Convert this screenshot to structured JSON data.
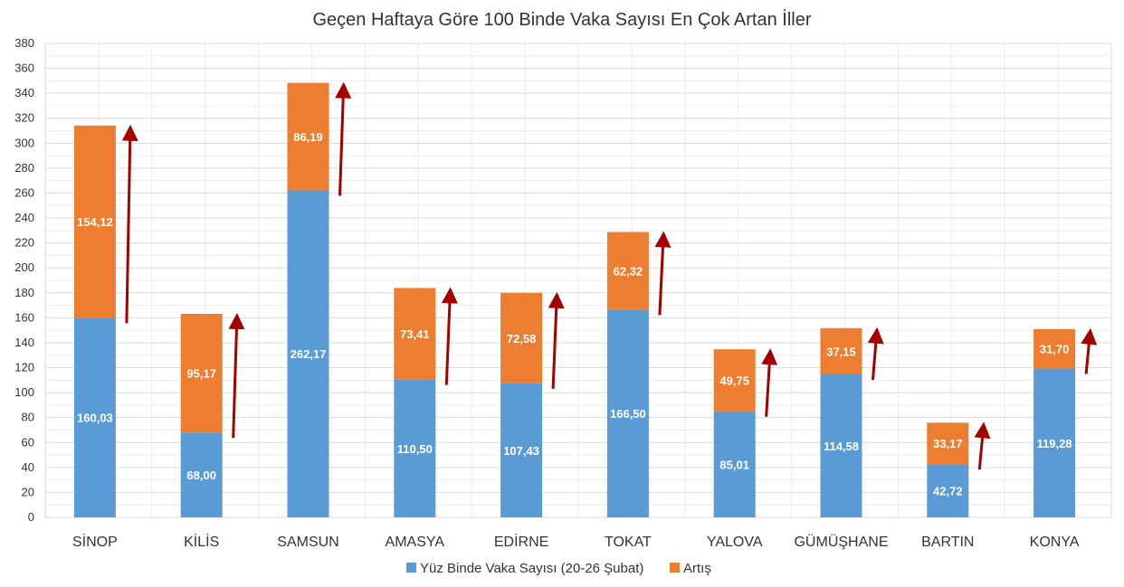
{
  "chart_data": {
    "type": "bar",
    "stacked": true,
    "title": "Geçen Haftaya Göre 100 Binde Vaka Sayısı En Çok Artan İller",
    "categories": [
      "SİNOP",
      "KİLİS",
      "SAMSUN",
      "AMASYA",
      "EDİRNE",
      "TOKAT",
      "YALOVA",
      "GÜMÜŞHANE",
      "BARTIN",
      "KONYA"
    ],
    "series": [
      {
        "name": "Yüz Binde Vaka Sayısı (20-26 Şubat)",
        "color": "#5b9bd5",
        "values": [
          160.03,
          68.0,
          262.17,
          110.5,
          107.43,
          166.5,
          85.01,
          114.58,
          42.72,
          119.28
        ],
        "labels": [
          "160,03",
          "68,00",
          "262,17",
          "110,50",
          "107,43",
          "166,50",
          "85,01",
          "114,58",
          "42,72",
          "119,28"
        ]
      },
      {
        "name": "Artış",
        "color": "#ed7d31",
        "values": [
          154.12,
          95.17,
          86.19,
          73.41,
          72.58,
          62.32,
          49.75,
          37.15,
          33.17,
          31.7
        ],
        "labels": [
          "154,12",
          "95,17",
          "86,19",
          "73,41",
          "72,58",
          "62,32",
          "49,75",
          "37,15",
          "33,17",
          "31,70"
        ]
      }
    ],
    "ylim": [
      0,
      380
    ],
    "yticks": [
      "0",
      "20",
      "40",
      "60",
      "80",
      "100",
      "120",
      "140",
      "160",
      "180",
      "200",
      "220",
      "240",
      "260",
      "280",
      "300",
      "320",
      "340",
      "360",
      "380"
    ],
    "ystep": 20,
    "grid": true,
    "legend_position": "bottom",
    "arrow_color": "#a50000"
  }
}
